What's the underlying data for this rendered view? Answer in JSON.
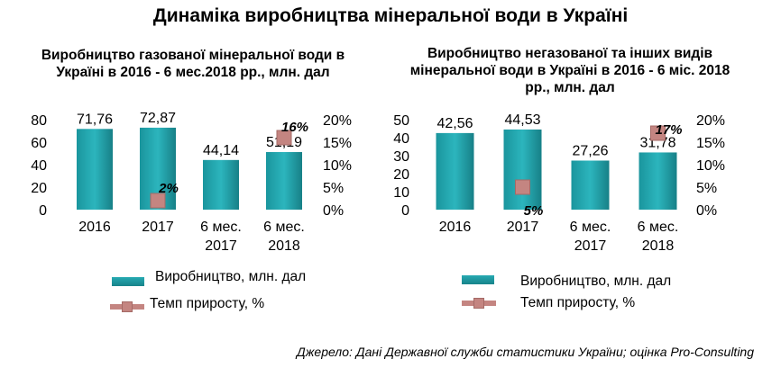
{
  "title": "Динаміка виробництва мінеральної води в Україні",
  "source": "Джерело: Дані Державної служби статистики України; оцінка Pro-Consulting",
  "colors": {
    "bar": "#1fa3ab",
    "line": "#c48581"
  },
  "legend": {
    "bar_label": "Виробництво, млн. дал",
    "line_label": "Темп приросту, %"
  },
  "chart_data": [
    {
      "type": "bar",
      "title": "Виробництво  газованої  мінеральної води в Україні в 2016  - 6 мес.2018  рр., млн. дал",
      "title_lines": [
        "Виробництво  газованої  мінеральної води в",
        "Україні в 2016  - 6 мес.2018  рр., млн. дал"
      ],
      "categories": [
        [
          "2016"
        ],
        [
          "2017"
        ],
        [
          "6 мес.",
          "2017"
        ],
        [
          "6 мес.",
          "2018"
        ]
      ],
      "series": [
        {
          "name": "Виробництво, млн. дал",
          "values": [
            71.76,
            72.87,
            44.14,
            51.19
          ],
          "labels": [
            "71,76",
            "72,87",
            "44,14",
            "51,19"
          ]
        },
        {
          "name": "Темп приросту, %",
          "values": [
            null,
            2,
            null,
            16
          ],
          "labels": [
            "",
            "2%",
            "",
            "16%"
          ]
        }
      ],
      "ylim": [
        0,
        80
      ],
      "yticks": [
        "0",
        "20",
        "40",
        "60",
        "80"
      ],
      "y2lim": [
        0,
        20
      ],
      "y2ticks": [
        "0%",
        "5%",
        "10%",
        "15%",
        "20%"
      ],
      "grid": false
    },
    {
      "type": "bar",
      "title": "Виробництво  негазованої  та інших видів мінеральної  води в Україні в 2016  - 6 міс. 2018 рр., млн. дал",
      "title_lines": [
        "Виробництво  негазованої  та інших видів",
        "мінеральної  води в Україні в 2016  - 6 міс. 2018",
        "рр., млн. дал"
      ],
      "categories": [
        [
          "2016"
        ],
        [
          "2017"
        ],
        [
          "6 мес.",
          "2017"
        ],
        [
          "6 мес.",
          "2018"
        ]
      ],
      "series": [
        {
          "name": "Виробництво, млн. дал",
          "values": [
            42.56,
            44.53,
            27.26,
            31.78
          ],
          "labels": [
            "42,56",
            "44,53",
            "27,26",
            "31,78"
          ]
        },
        {
          "name": "Темп приросту, %",
          "values": [
            null,
            5,
            null,
            17
          ],
          "labels": [
            "",
            "5%",
            "",
            "17%"
          ]
        }
      ],
      "ylim": [
        0,
        50
      ],
      "yticks": [
        "0",
        "10",
        "20",
        "30",
        "40",
        "50"
      ],
      "y2lim": [
        0,
        20
      ],
      "y2ticks": [
        "0%",
        "5%",
        "10%",
        "15%",
        "20%"
      ],
      "grid": false
    }
  ]
}
